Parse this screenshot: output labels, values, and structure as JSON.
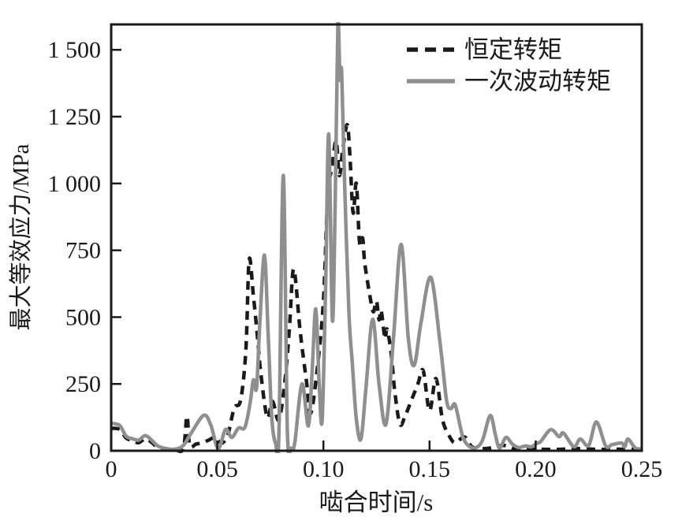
{
  "figure": {
    "background": "#ffffff",
    "axis_color": "#1a1a1a"
  },
  "chart_data": {
    "type": "line",
    "title": "",
    "xlabel": "啮合时间/s",
    "ylabel": "最大等效应力/MPa",
    "xlim": [
      0,
      0.25
    ],
    "ylim": [
      0,
      1595
    ],
    "grid": false,
    "legend_position": "top-right-inside",
    "x_ticks": [
      "0",
      "0.05",
      "0.10",
      "0.15",
      "0.20",
      "0.25"
    ],
    "x_tick_values": [
      0,
      0.05,
      0.1,
      0.15,
      0.2,
      0.25
    ],
    "y_ticks": [
      "0",
      "250",
      "500",
      "750",
      "1 000",
      "1 250",
      "1 500"
    ],
    "y_tick_values": [
      0,
      250,
      500,
      750,
      1000,
      1250,
      1500
    ],
    "series": [
      {
        "name": "恒定转矩",
        "style": "dashed",
        "color": "#1a1a1a",
        "x": [
          0,
          0.004,
          0.007,
          0.01,
          0.013,
          0.016,
          0.019,
          0.022,
          0.026,
          0.03,
          0.034,
          0.0357,
          0.037,
          0.04,
          0.043,
          0.046,
          0.049,
          0.052,
          0.055,
          0.058,
          0.061,
          0.0635,
          0.065,
          0.067,
          0.069,
          0.0705,
          0.0735,
          0.076,
          0.079,
          0.082,
          0.084,
          0.086,
          0.089,
          0.092,
          0.094,
          0.097,
          0.1,
          0.102,
          0.104,
          0.106,
          0.1075,
          0.109,
          0.1112,
          0.1125,
          0.114,
          0.1155,
          0.117,
          0.1185,
          0.1195,
          0.122,
          0.1235,
          0.125,
          0.1262,
          0.1272,
          0.129,
          0.13,
          0.132,
          0.1335,
          0.136,
          0.1385,
          0.141,
          0.1445,
          0.147,
          0.15,
          0.153,
          0.156,
          0.159,
          0.162,
          0.1665,
          0.17,
          0.175,
          0.18,
          0.185,
          0.19,
          0.195,
          0.2,
          0.21,
          0.22,
          0.23,
          0.24,
          0.25
        ],
        "y": [
          84,
          80,
          48,
          38,
          30,
          45,
          32,
          12,
          5,
          4,
          8,
          130,
          20,
          25,
          30,
          40,
          50,
          28,
          62,
          160,
          190,
          380,
          715,
          580,
          420,
          290,
          125,
          185,
          115,
          270,
          460,
          680,
          450,
          260,
          140,
          300,
          560,
          950,
          1060,
          1160,
          1030,
          1120,
          1220,
          1100,
          890,
          1000,
          780,
          795,
          700,
          575,
          520,
          560,
          490,
          525,
          420,
          455,
          360,
          230,
          100,
          130,
          180,
          250,
          300,
          150,
          270,
          120,
          60,
          30,
          52,
          15,
          8,
          12,
          20,
          8,
          5,
          6,
          5,
          8,
          5,
          6,
          5
        ]
      },
      {
        "name": "一次波动转矩",
        "style": "solid",
        "color": "#8f8f8f",
        "x": [
          0,
          0.004,
          0.007,
          0.01,
          0.013,
          0.016,
          0.019,
          0.022,
          0.026,
          0.03,
          0.034,
          0.038,
          0.0437,
          0.047,
          0.0504,
          0.0539,
          0.0568,
          0.06,
          0.063,
          0.0655,
          0.067,
          0.0685,
          0.07,
          0.0722,
          0.074,
          0.0757,
          0.0775,
          0.079,
          0.0811,
          0.083,
          0.0848,
          0.0865,
          0.0899,
          0.0929,
          0.0947,
          0.0964,
          0.098,
          0.0994,
          0.101,
          0.1025,
          0.1042,
          0.1055,
          0.1068,
          0.1078,
          0.1086,
          0.11,
          0.112,
          0.1136,
          0.1155,
          0.1177,
          0.12,
          0.1232,
          0.1262,
          0.1295,
          0.133,
          0.1366,
          0.14,
          0.1428,
          0.146,
          0.1506,
          0.155,
          0.158,
          0.16,
          0.162,
          0.1645,
          0.166,
          0.169,
          0.172,
          0.175,
          0.1786,
          0.181,
          0.183,
          0.186,
          0.189,
          0.192,
          0.195,
          0.198,
          0.2005,
          0.2024,
          0.2071,
          0.211,
          0.2131,
          0.218,
          0.221,
          0.225,
          0.2286,
          0.233,
          0.236,
          0.2405,
          0.242,
          0.2435,
          0.247,
          0.25
        ],
        "y": [
          103,
          95,
          55,
          45,
          40,
          57,
          40,
          18,
          8,
          6,
          20,
          70,
          133,
          95,
          8,
          80,
          50,
          85,
          88,
          180,
          265,
          235,
          470,
          732,
          430,
          120,
          28,
          60,
          1030,
          80,
          10,
          30,
          250,
          93,
          300,
          531,
          250,
          114,
          600,
          1185,
          490,
          900,
          1590,
          1390,
          1415,
          1000,
          520,
          330,
          120,
          44,
          230,
          492,
          250,
          100,
          420,
          772,
          420,
          320,
          480,
          649,
          400,
          190,
          158,
          173,
          90,
          44,
          15,
          12,
          40,
          132,
          60,
          10,
          50,
          25,
          12,
          18,
          15,
          28,
          35,
          79,
          53,
          66,
          15,
          44,
          20,
          108,
          18,
          23,
          29,
          15,
          44,
          10,
          8
        ]
      }
    ]
  }
}
